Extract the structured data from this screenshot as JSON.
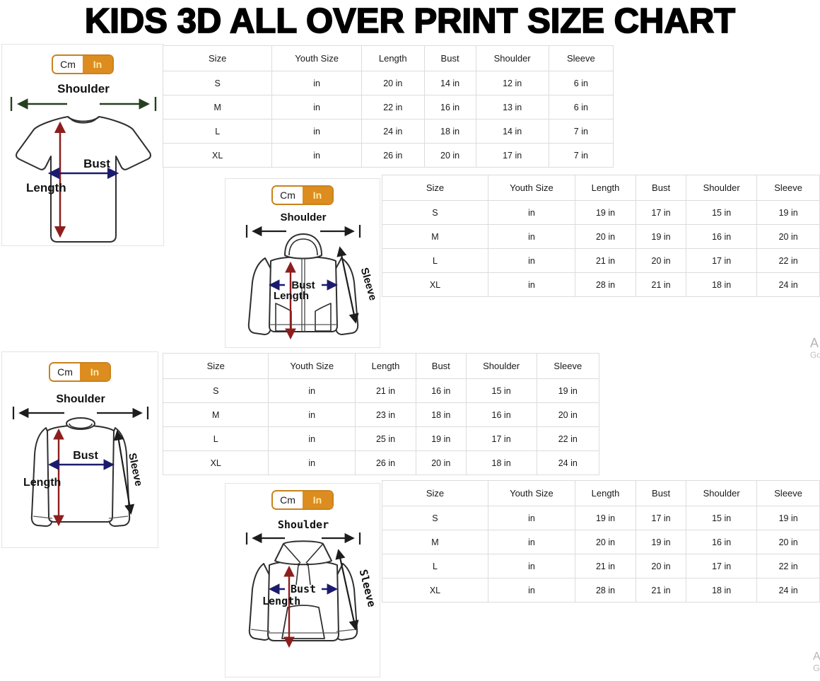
{
  "title": "KIDS 3D ALL OVER PRINT SIZE CHART",
  "toggle": {
    "cm": "Cm",
    "in": "In"
  },
  "colors": {
    "accent_orange": "#dd8c1f",
    "toggle_border": "#c9821e",
    "toggle_in_text": "#ffeaa6",
    "arrow_red": "#8e1e1e",
    "arrow_navy": "#1b1b6e",
    "arrow_black": "#1d1d1d",
    "arrow_green": "#26401f",
    "table_border": "#dcdcdc"
  },
  "diagrams": {
    "tshirt": {
      "labels": {
        "shoulder": "Shoulder",
        "bust": "Bust",
        "length": "Length"
      }
    },
    "zip_hoodie": {
      "labels": {
        "shoulder": "Shoulder",
        "bust": "Bust",
        "length": "Length",
        "sleeve": "Sleeve"
      }
    },
    "long_sleeve": {
      "labels": {
        "shoulder": "Shoulder",
        "bust": "Bust",
        "length": "Length",
        "sleeve": "Sleeve"
      }
    },
    "hoodie": {
      "labels": {
        "shoulder": "Shoulder",
        "bust": "Bust",
        "length": "Length",
        "sleeve": "Sleeve"
      }
    }
  },
  "tables": [
    {
      "garment": "t-shirt",
      "headers": [
        "Size",
        "Youth Size",
        "Length",
        "Bust",
        "Shoulder",
        "Sleeve"
      ],
      "rows": [
        [
          "S",
          "in",
          "20 in",
          "14 in",
          "12 in",
          "6 in"
        ],
        [
          "M",
          "in",
          "22 in",
          "16 in",
          "13 in",
          "6 in"
        ],
        [
          "L",
          "in",
          "24 in",
          "18 in",
          "14 in",
          "7 in"
        ],
        [
          "XL",
          "in",
          "26 in",
          "20 in",
          "17 in",
          "7 in"
        ]
      ]
    },
    {
      "garment": "zip-hoodie",
      "headers": [
        "Size",
        "Youth Size",
        "Length",
        "Bust",
        "Shoulder",
        "Sleeve"
      ],
      "rows": [
        [
          "S",
          "in",
          "19 in",
          "17 in",
          "15 in",
          "19 in"
        ],
        [
          "M",
          "in",
          "20 in",
          "19 in",
          "16 in",
          "20 in"
        ],
        [
          "L",
          "in",
          "21 in",
          "20 in",
          "17 in",
          "22 in"
        ],
        [
          "XL",
          "in",
          "28 in",
          "21 in",
          "18 in",
          "24 in"
        ]
      ]
    },
    {
      "garment": "long-sleeve",
      "headers": [
        "Size",
        "Youth Size",
        "Length",
        "Bust",
        "Shoulder",
        "Sleeve"
      ],
      "rows": [
        [
          "S",
          "in",
          "21 in",
          "16 in",
          "15 in",
          "19 in"
        ],
        [
          "M",
          "in",
          "23 in",
          "18 in",
          "16 in",
          "20 in"
        ],
        [
          "L",
          "in",
          "25 in",
          "19 in",
          "17 in",
          "22 in"
        ],
        [
          "XL",
          "in",
          "26 in",
          "20 in",
          "18 in",
          "24 in"
        ]
      ]
    },
    {
      "garment": "hoodie",
      "headers": [
        "Size",
        "Youth Size",
        "Length",
        "Bust",
        "Shoulder",
        "Sleeve"
      ],
      "rows": [
        [
          "S",
          "in",
          "19 in",
          "17 in",
          "15 in",
          "19 in"
        ],
        [
          "M",
          "in",
          "20 in",
          "19 in",
          "16 in",
          "20 in"
        ],
        [
          "L",
          "in",
          "21 in",
          "20 in",
          "17 in",
          "22 in"
        ],
        [
          "XL",
          "in",
          "28 in",
          "21 in",
          "18 in",
          "24 in"
        ]
      ]
    }
  ],
  "watermark_right": {
    "line1": "A",
    "line2": "Go"
  },
  "watermark_bottom": {
    "line1": "A",
    "line2": "G"
  }
}
